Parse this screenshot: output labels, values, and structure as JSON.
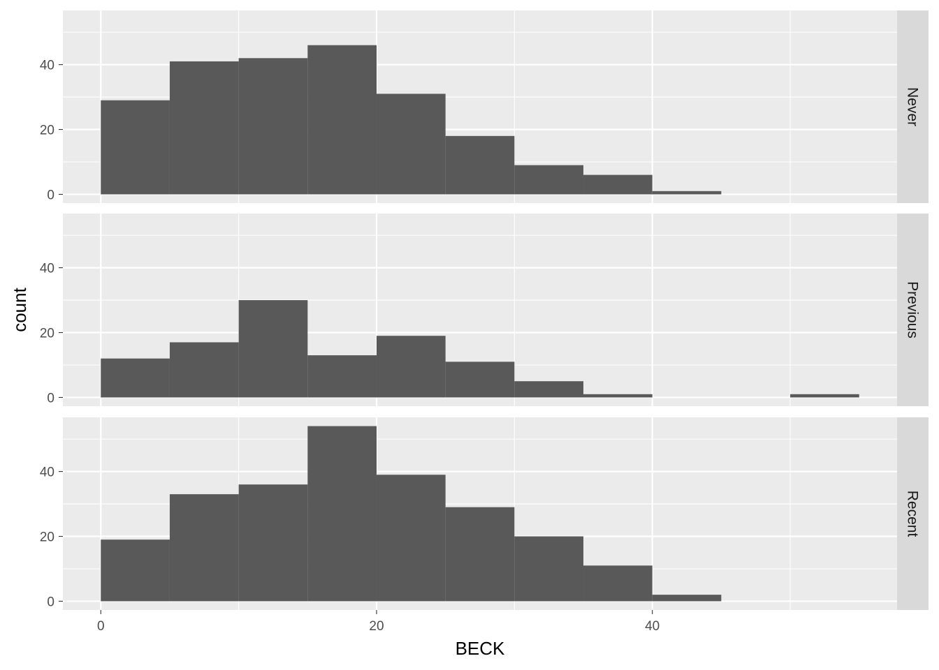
{
  "chart_data": {
    "type": "bar",
    "subtype": "faceted-histogram",
    "title": "",
    "xlabel": "BECK",
    "ylabel": "count",
    "bin_width": 5,
    "bin_starts": [
      0,
      5,
      10,
      15,
      20,
      25,
      30,
      35,
      40,
      45,
      50
    ],
    "xlim": [
      -2.75,
      57.75
    ],
    "ylim": [
      -2.7,
      56.7
    ],
    "x_ticks": [
      0,
      20,
      40
    ],
    "x_tick_labels": [
      "0",
      "20",
      "40"
    ],
    "y_ticks": [
      0,
      20,
      40
    ],
    "y_tick_labels": [
      "0",
      "20",
      "40"
    ],
    "grid": true,
    "legend": "none",
    "panel_background": "#ebebeb",
    "grid_color": "#ffffff",
    "bar_color": "#595959",
    "strip_background": "#d9d9d9",
    "facets": [
      {
        "name": "Never",
        "values": [
          29,
          41,
          42,
          46,
          31,
          18,
          9,
          6,
          1,
          0,
          0
        ]
      },
      {
        "name": "Previous",
        "values": [
          12,
          17,
          30,
          13,
          19,
          11,
          5,
          1,
          0,
          0,
          1
        ]
      },
      {
        "name": "Recent",
        "values": [
          19,
          33,
          36,
          54,
          39,
          29,
          20,
          11,
          2,
          0,
          0
        ]
      }
    ]
  }
}
